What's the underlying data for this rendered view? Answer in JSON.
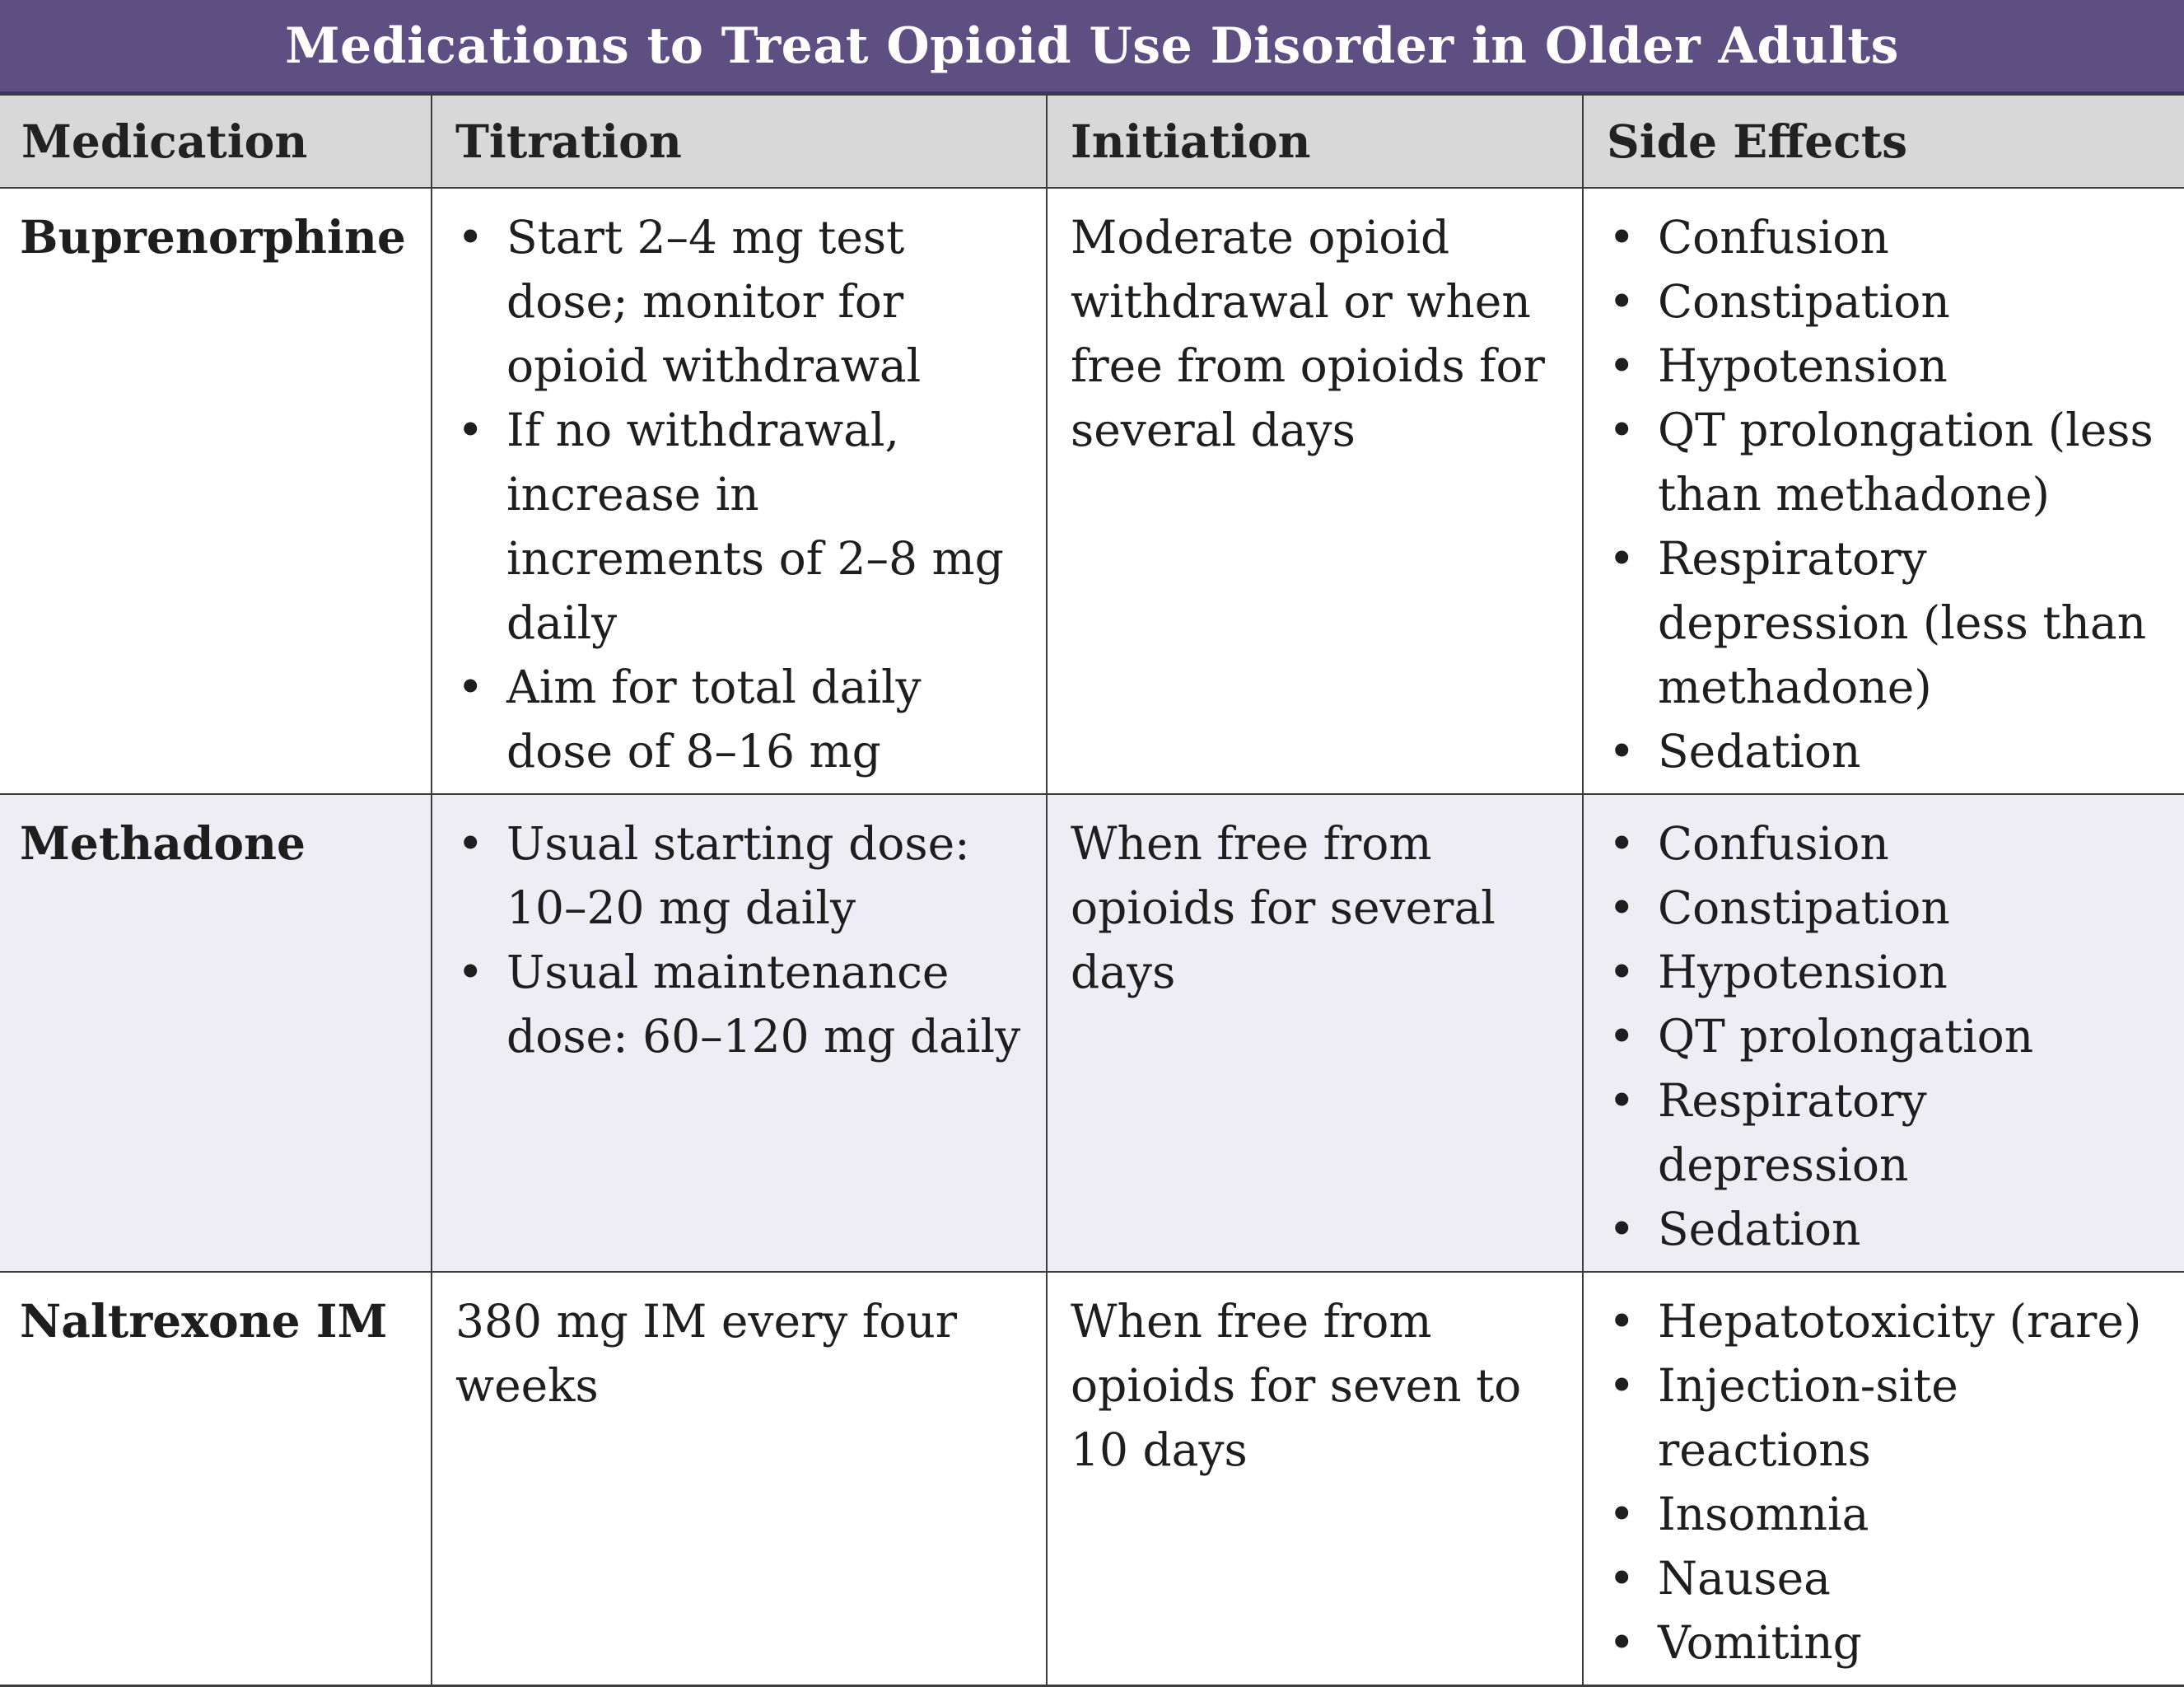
{
  "title": "Medications to Treat Opioid Use Disorder in Older Adults",
  "headers": [
    "Medication",
    "Titration",
    "Initiation",
    "Side Effects"
  ],
  "rows": [
    {
      "medication": "Buprenorphine",
      "titration": [
        "Start 2–4 mg test dose; monitor for opioid withdrawal",
        "If no withdrawal, increase in increments of 2–8 mg daily",
        "Aim for total daily dose of 8–16 mg"
      ],
      "initiation": "Moderate opioid withdrawal or when free from opioids for several days",
      "side_effects": [
        "Confusion",
        "Constipation",
        "Hypotension",
        "QT prolongation (less than methadone)",
        "Respiratory depression (less than methadone)",
        "Sedation"
      ]
    },
    {
      "medication": "Methadone",
      "titration": [
        "Usual starting dose: 10–20 mg daily",
        "Usual maintenance dose: 60–120 mg daily"
      ],
      "initiation": "When free from opioids for several days",
      "side_effects": [
        "Confusion",
        "Constipation",
        "Hypotension",
        "QT prolongation",
        "Respiratory depression",
        "Sedation"
      ]
    },
    {
      "medication": "Naltrexone IM",
      "titration_text": "380 mg IM every four weeks",
      "initiation": "When free from opioids for seven to 10 days",
      "side_effects": [
        "Hepatotoxicity (rare)",
        "Injection-site reactions",
        "Insomnia",
        "Nausea",
        "Vomiting"
      ]
    }
  ],
  "colors": {
    "title_bg": "#5e4f83",
    "header_bg": "#d8d8d8",
    "alt_row_bg": "#eeedf3",
    "border": "#3c3c3c"
  }
}
